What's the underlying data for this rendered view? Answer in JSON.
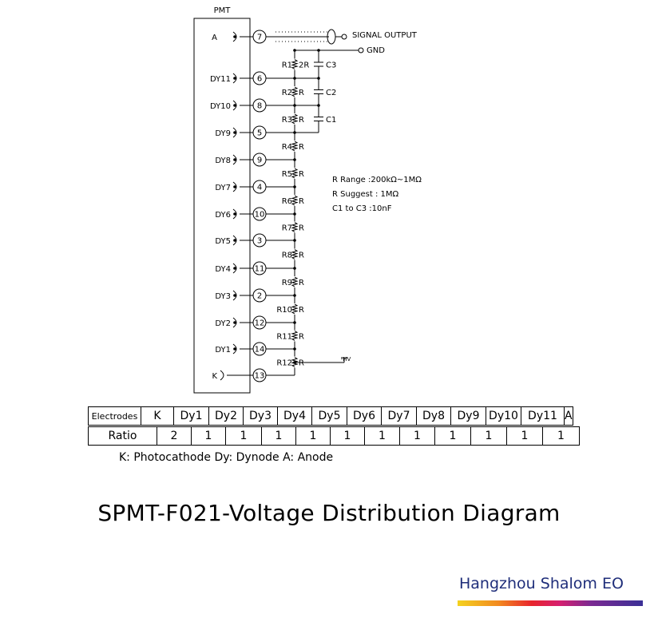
{
  "pmt_label": "PMT",
  "pins": [
    {
      "label": "A",
      "pin": "7"
    },
    {
      "label": "DY11",
      "pin": "6"
    },
    {
      "label": "DY10",
      "pin": "8"
    },
    {
      "label": "DY9",
      "pin": "5"
    },
    {
      "label": "DY8",
      "pin": "9"
    },
    {
      "label": "DY7",
      "pin": "4"
    },
    {
      "label": "DY6",
      "pin": "10"
    },
    {
      "label": "DY5",
      "pin": "3"
    },
    {
      "label": "DY4",
      "pin": "11"
    },
    {
      "label": "DY3",
      "pin": "2"
    },
    {
      "label": "DY2",
      "pin": "12"
    },
    {
      "label": "DY1",
      "pin": "14"
    },
    {
      "label": "K",
      "pin": "13"
    }
  ],
  "resistors": [
    {
      "name": "R12",
      "value": "R"
    },
    {
      "name": "R11",
      "value": "R"
    },
    {
      "name": "R10",
      "value": "R"
    },
    {
      "name": "R9",
      "value": "R"
    },
    {
      "name": "R8",
      "value": "R"
    },
    {
      "name": "R7",
      "value": "R"
    },
    {
      "name": "R6",
      "value": "R"
    },
    {
      "name": "R5",
      "value": "R"
    },
    {
      "name": "R4",
      "value": "R"
    },
    {
      "name": "R3",
      "value": "R"
    },
    {
      "name": "R2",
      "value": "R"
    },
    {
      "name": "R1",
      "value": "2R"
    }
  ],
  "capacitors": [
    "C3",
    "C2",
    "C1"
  ],
  "signal_output": "SIGNAL  OUTPUT",
  "gnd": "GND",
  "hv": "-HV",
  "notes": [
    "R Range :200kΩ~1MΩ",
    "R Suggest : 1MΩ",
    "C1  to  C3 :10nF"
  ],
  "table": {
    "electrodes_header": "Electrodes",
    "electrodes": [
      "K",
      "Dy1",
      "Dy2",
      "Dy3",
      "Dy4",
      "Dy5",
      "Dy6",
      "Dy7",
      "Dy8",
      "Dy9",
      "Dy10",
      "Dy11",
      "A"
    ],
    "ratio_header": "Ratio",
    "ratios": [
      "2",
      "1",
      "1",
      "1",
      "1",
      "1",
      "1",
      "1",
      "1",
      "1",
      "1",
      "1"
    ]
  },
  "legend": "K: Photocathode  Dy: Dynode  A: Anode",
  "title": "SPMT-F021-Voltage Distribution Diagram",
  "company": "Hangzhou Shalom EO"
}
